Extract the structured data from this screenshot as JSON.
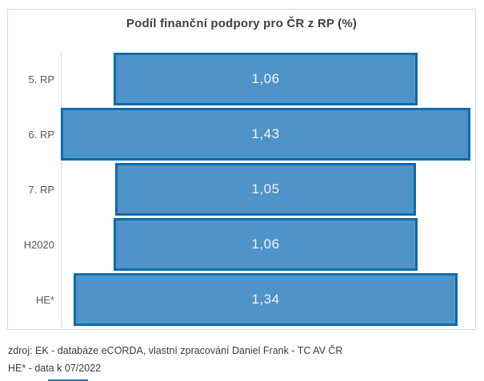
{
  "chart_data": {
    "type": "bar",
    "orientation": "horizontal",
    "style": "centered-funnel",
    "title": "Podíl finanční podpory pro ČR z RP (%)",
    "categories": [
      "5. RP",
      "6. RP",
      "7. RP",
      "H2020",
      "HE*"
    ],
    "values": [
      1.06,
      1.43,
      1.05,
      1.06,
      1.34
    ],
    "value_labels": [
      "1,06",
      "1,43",
      "1,05",
      "1,06",
      "1,34"
    ],
    "xlabel": "",
    "ylabel": "",
    "xlim": [
      0,
      1.43
    ],
    "grid": false,
    "legend": false,
    "data_labels": "inside-center"
  },
  "footer": {
    "source_line": "zdroj: EK - databáze eCORDA, vlastní zpracování Daniel Frank - TC AV ČR",
    "note_line": "HE* - data k 07/2022"
  },
  "colors": {
    "bar_fill": "#4F94C9",
    "bar_border": "#0F6AAD",
    "frame_border": "#D9D9D9",
    "axis_line": "#D9D9D9",
    "title_text": "#404040",
    "label_text": "#595959",
    "value_text": "#F2F2F2",
    "footer_text": "#3C3C3C",
    "bottom_sliver": "#2E75B6"
  }
}
